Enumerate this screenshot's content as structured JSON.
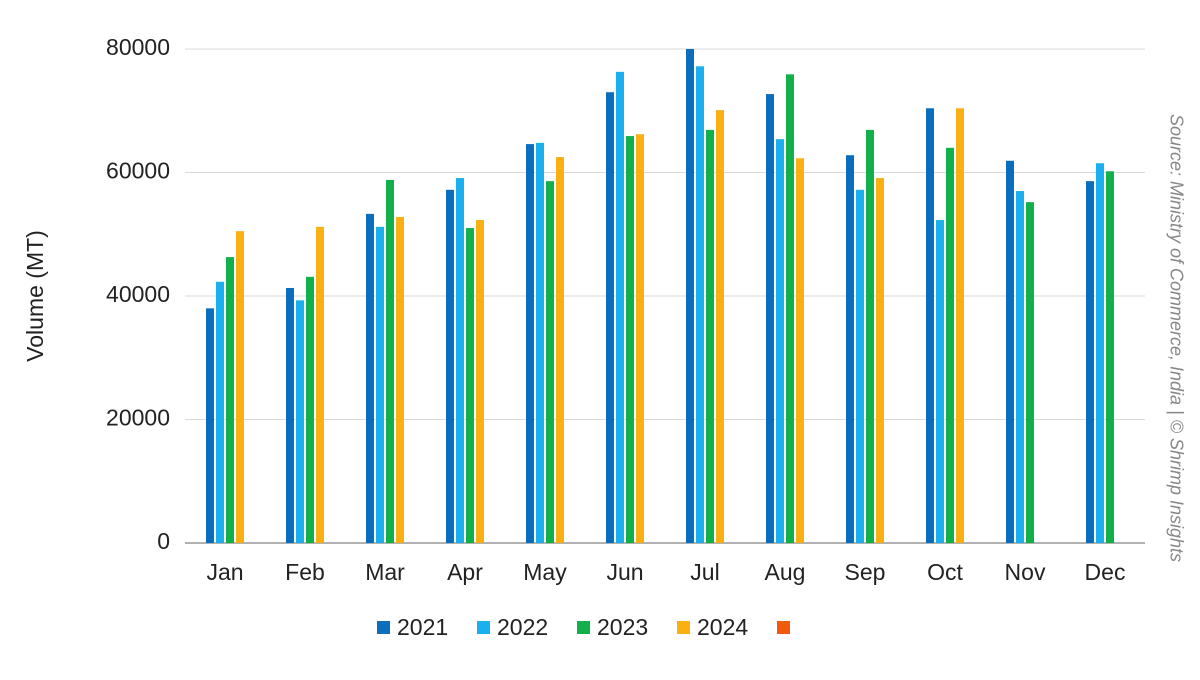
{
  "chart_data": {
    "type": "bar",
    "y_label": "Volume (MT)",
    "source": "Source: Ministry of Commerce, India | © Shrimp Insights",
    "categories": [
      "Jan",
      "Feb",
      "Mar",
      "Apr",
      "May",
      "Jun",
      "Jul",
      "Aug",
      "Sep",
      "Oct",
      "Nov",
      "Dec"
    ],
    "series": [
      {
        "name": "2021",
        "color": "#0a6ebd",
        "values": [
          38000,
          41300,
          53300,
          57200,
          64600,
          73000,
          80000,
          72700,
          62800,
          70400,
          61900,
          58600
        ]
      },
      {
        "name": "2022",
        "color": "#1ab0ef",
        "values": [
          42300,
          39300,
          51200,
          59100,
          64800,
          76300,
          77200,
          65400,
          57200,
          52300,
          57000,
          61500
        ]
      },
      {
        "name": "2023",
        "color": "#12b04a",
        "values": [
          46300,
          43100,
          58800,
          51000,
          58600,
          65900,
          66900,
          75900,
          66900,
          64000,
          55200,
          60200
        ]
      },
      {
        "name": "2024",
        "color": "#fbb011",
        "values": [
          50500,
          51200,
          52800,
          52300,
          62500,
          66200,
          70100,
          62300,
          59100,
          70400,
          null,
          null
        ]
      },
      {
        "color": "#f05a0a",
        "values": [
          null,
          null,
          null,
          null,
          null,
          null,
          null,
          null,
          null,
          null,
          null,
          null
        ]
      }
    ],
    "ylim": [
      0,
      80000
    ],
    "yticks": [
      0,
      20000,
      40000,
      60000,
      80000
    ],
    "grid": true
  }
}
